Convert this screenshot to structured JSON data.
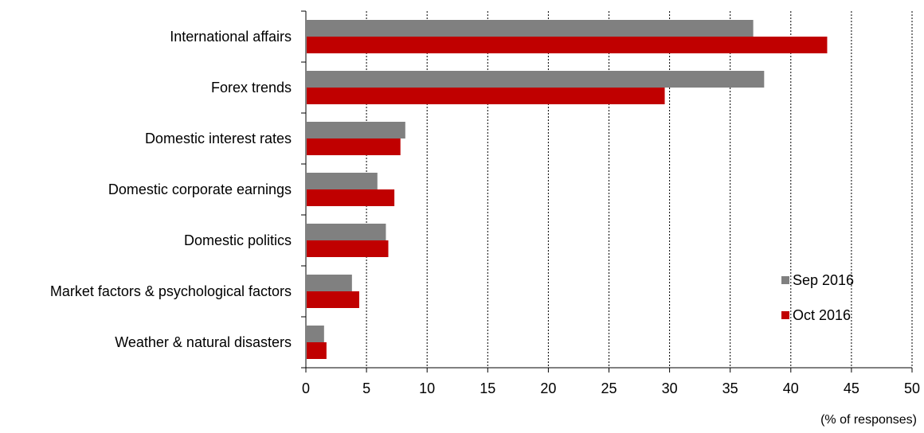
{
  "chart_data": {
    "type": "bar",
    "orientation": "horizontal",
    "categories": [
      "International affairs",
      "Forex trends",
      "Domestic interest rates",
      "Domestic corporate earnings",
      "Domestic politics",
      "Market factors & psychological factors",
      "Weather & natural disasters"
    ],
    "series": [
      {
        "name": "Sep 2016",
        "color": "#808080",
        "values": [
          36.9,
          37.8,
          8.2,
          5.9,
          6.6,
          3.8,
          1.5
        ]
      },
      {
        "name": "Oct 2016",
        "color": "#c00000",
        "values": [
          43.0,
          29.6,
          7.8,
          7.3,
          6.8,
          4.4,
          1.7
        ]
      }
    ],
    "xlim": [
      0,
      50
    ],
    "xticks": [
      0,
      5,
      10,
      15,
      20,
      25,
      30,
      35,
      40,
      45,
      50
    ],
    "unit_label": "(% of responses)",
    "grid": "vertical dotted",
    "legend_position": "lower-right"
  }
}
